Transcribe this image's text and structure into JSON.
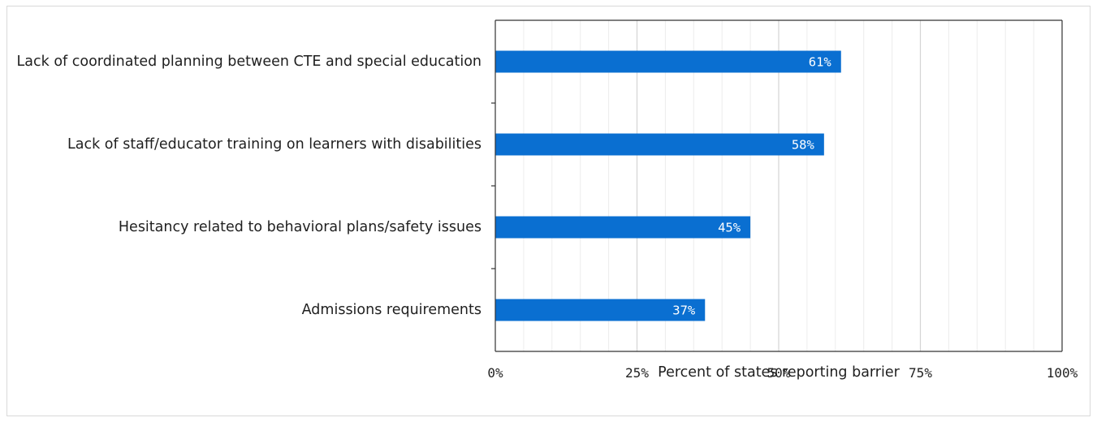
{
  "chart_data": {
    "type": "bar",
    "orientation": "horizontal",
    "categories": [
      "Lack of coordinated planning between CTE and special education",
      "Lack of staff/educator training on learners with disabilities",
      "Hesitancy related to behavioral plans/safety issues",
      "Admissions requirements"
    ],
    "values": [
      61,
      58,
      45,
      37
    ],
    "data_labels": [
      "61%",
      "58%",
      "45%",
      "37%"
    ],
    "xlabel": "Percent of states reporting barrier",
    "ylabel": "",
    "xlim": [
      0,
      100
    ],
    "x_ticks": [
      0,
      25,
      50,
      75,
      100
    ],
    "x_tick_labels": [
      "0%",
      "25%",
      "50%",
      "75%",
      "100%"
    ],
    "minor_grid_step": 5,
    "grid": true,
    "legend": "none",
    "colors": {
      "bar": "#0a6fd1",
      "grid_major": "#d4d4d4",
      "grid_minor": "#ececec",
      "axis": "#333333"
    }
  }
}
